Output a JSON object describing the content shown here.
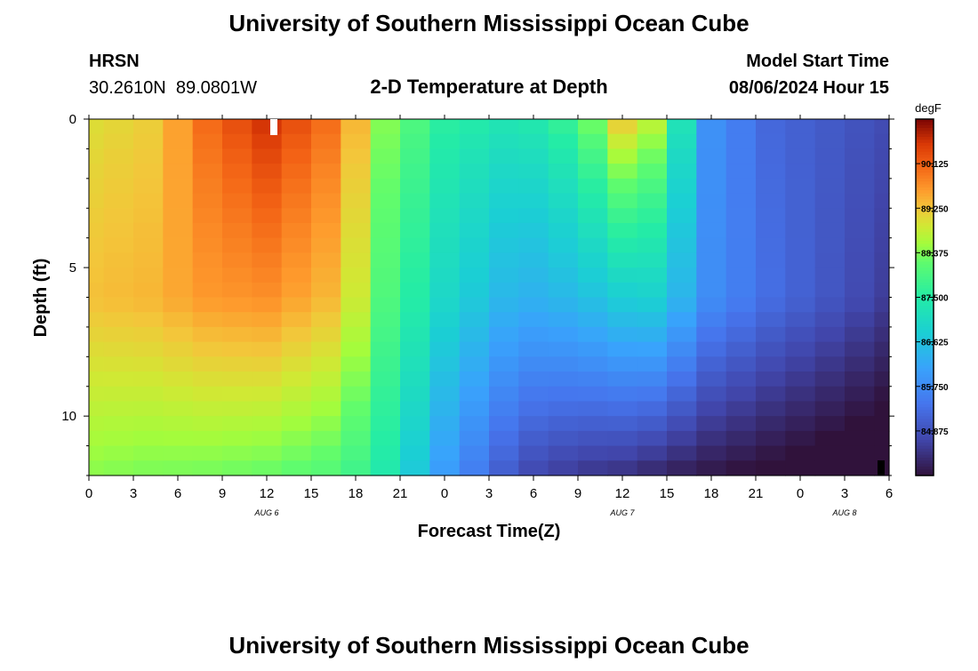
{
  "header": {
    "title": "University of Southern Mississippi Ocean Cube",
    "station": "HRSN",
    "coords": "30.2610N  89.0801W",
    "subtitle": "2-D Temperature at Depth",
    "model_label": "Model Start Time",
    "model_time": "08/06/2024 Hour 15"
  },
  "footer": {
    "title": "University of Southern Mississippi Ocean Cube"
  },
  "chart_data": {
    "type": "heatmap",
    "title": "2-D Temperature at Depth",
    "xlabel": "Forecast Time(Z)",
    "ylabel": "Depth (ft)",
    "x_range_hours": [
      0,
      54
    ],
    "xticks": [
      {
        "h": 0,
        "label": "0"
      },
      {
        "h": 3,
        "label": "3"
      },
      {
        "h": 6,
        "label": "6"
      },
      {
        "h": 9,
        "label": "9"
      },
      {
        "h": 12,
        "label": "12"
      },
      {
        "h": 15,
        "label": "15"
      },
      {
        "h": 18,
        "label": "18"
      },
      {
        "h": 21,
        "label": "21"
      },
      {
        "h": 24,
        "label": "0"
      },
      {
        "h": 27,
        "label": "3"
      },
      {
        "h": 30,
        "label": "6"
      },
      {
        "h": 33,
        "label": "9"
      },
      {
        "h": 36,
        "label": "12"
      },
      {
        "h": 39,
        "label": "15"
      },
      {
        "h": 42,
        "label": "18"
      },
      {
        "h": 45,
        "label": "21"
      },
      {
        "h": 48,
        "label": "0"
      },
      {
        "h": 51,
        "label": "3"
      },
      {
        "h": 54,
        "label": "6"
      }
    ],
    "date_labels": [
      {
        "h": 12,
        "label": "AUG 6"
      },
      {
        "h": 36,
        "label": "AUG 7"
      },
      {
        "h": 51,
        "label": "AUG 8"
      }
    ],
    "y_range_ft": [
      0,
      12
    ],
    "yticks": [
      {
        "v": 0,
        "label": "0"
      },
      {
        "v": 5,
        "label": "5"
      },
      {
        "v": 10,
        "label": "10"
      }
    ],
    "depth_layers_ft": [
      0.25,
      0.75,
      1.25,
      1.75,
      2.25,
      2.75,
      3.25,
      3.75,
      4.25,
      4.75,
      5.25,
      5.75,
      6.25,
      6.75,
      7.25,
      7.75,
      8.25,
      8.75,
      9.25,
      9.75,
      10.25,
      10.75,
      11.25,
      11.75
    ],
    "time_steps_hours": [
      0,
      2,
      4,
      6,
      8,
      10,
      12,
      14,
      16,
      18,
      20,
      22,
      24,
      26,
      28,
      30,
      32,
      34,
      36,
      38,
      40,
      42,
      44,
      46,
      48,
      50,
      52,
      54
    ],
    "profile_keys": {
      "time_hours": [
        0,
        5,
        7,
        12,
        17,
        20,
        24,
        29,
        33,
        36,
        39,
        41,
        46,
        54
      ],
      "surface_temp_F": [
        89.0,
        89.2,
        89.9,
        90.6,
        89.9,
        88.4,
        87.6,
        87.3,
        87.9,
        89.3,
        88.6,
        86.0,
        85.2,
        84.8
      ],
      "depth6ft_temp_F": [
        89.3,
        89.4,
        89.6,
        89.7,
        89.3,
        88.0,
        87.0,
        86.3,
        86.5,
        86.8,
        86.9,
        85.9,
        85.3,
        84.6
      ],
      "depth12ft_temp_F": [
        88.4,
        88.3,
        88.3,
        88.2,
        88.0,
        87.4,
        86.0,
        84.8,
        84.5,
        84.4,
        84.2,
        84.1,
        83.9,
        83.6
      ]
    },
    "colorbar": {
      "unit": "degF",
      "range": [
        84.0,
        91.0
      ],
      "ticks": [
        "90.125",
        "89.250",
        "88.375",
        "87.500",
        "86.625",
        "85.750",
        "84.875"
      ]
    }
  }
}
